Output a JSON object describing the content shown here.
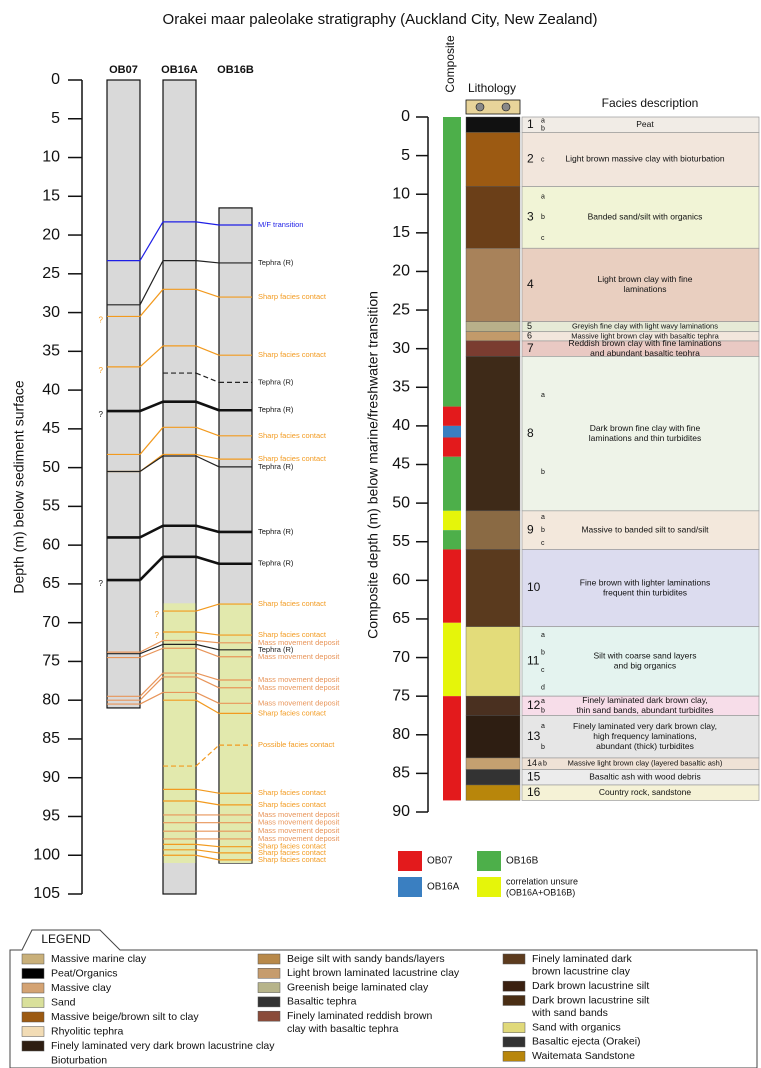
{
  "title": "Orakei maar paleolake stratigraphy (Auckland City, New Zealand)",
  "left_panel": {
    "axis_label": "Depth (m) below sediment surface",
    "ylim": [
      0,
      105
    ],
    "yticks": [
      0,
      5,
      10,
      15,
      20,
      25,
      30,
      35,
      40,
      45,
      50,
      55,
      60,
      65,
      70,
      75,
      80,
      85,
      90,
      95,
      100,
      105
    ],
    "cores": [
      {
        "name": "OB07",
        "top": 0,
        "bottom": 81
      },
      {
        "name": "OB16A",
        "top": 0,
        "bottom": 105,
        "sand": [
          67.5,
          101
        ]
      },
      {
        "name": "OB16B",
        "top": 16.5,
        "bottom": 101,
        "sand": [
          67.5,
          101
        ]
      }
    ],
    "correlations": [
      {
        "label": "M/F transition",
        "color": "#1f1fe6",
        "depths": [
          23.3,
          18.3,
          18.7
        ]
      },
      {
        "label": "Tephra (R)",
        "color": "#222222",
        "depths": [
          29,
          23.3,
          23.6
        ]
      },
      {
        "label": "Sharp facies contact",
        "color": "#f29a1f",
        "depths": [
          30.5,
          27,
          28
        ],
        "note": "?"
      },
      {
        "label": "Sharp facies contact",
        "color": "#f29a1f",
        "depths": [
          37,
          34.3,
          35.5
        ],
        "note": "?"
      },
      {
        "label": "Tephra (R)",
        "color": "#222222",
        "depths": [
          null,
          37.8,
          39
        ],
        "dashed": true
      },
      {
        "label": "Tephra (R)",
        "color": "#111111",
        "depths": [
          42.7,
          41.5,
          42.6
        ],
        "bold": true,
        "note": "?"
      },
      {
        "label": "Sharp facies contact",
        "color": "#f29a1f",
        "depths": [
          48.3,
          44.8,
          45.9
        ]
      },
      {
        "label": "Sharp facies contact",
        "color": "#f29a1f",
        "depths": [
          50.5,
          48.3,
          48.9
        ]
      },
      {
        "label": "Tephra (R)",
        "color": "#222222",
        "depths": [
          50.5,
          48.5,
          49.9
        ]
      },
      {
        "label": "Tephra (R)",
        "color": "#111111",
        "depths": [
          59,
          57.5,
          58.3
        ],
        "bold": true
      },
      {
        "label": "Tephra (R)",
        "color": "#111111",
        "depths": [
          64.5,
          61.5,
          62.4
        ],
        "bold": true,
        "note": "?"
      },
      {
        "label": "Sharp facies contact",
        "color": "#f29a1f",
        "depths": [
          null,
          68.5,
          67.6
        ],
        "note": "?"
      },
      {
        "label": "Sharp facies contact",
        "color": "#f29a1f",
        "depths": [
          null,
          71.2,
          71.6
        ],
        "note": "?"
      },
      {
        "label": "Mass movement deposit",
        "color": "#e8955a",
        "depths": [
          73.8,
          72.3,
          72.6
        ]
      },
      {
        "label": "Tephra (R)",
        "color": "#222222",
        "depths": [
          74,
          72.8,
          73.5
        ]
      },
      {
        "label": "Mass movement deposit",
        "color": "#e8955a",
        "depths": [
          74.5,
          73.3,
          74.4
        ]
      },
      {
        "label": "Mass movement deposit",
        "color": "#e8955a",
        "depths": [
          79.5,
          76.5,
          77.4
        ]
      },
      {
        "label": "Mass movement deposit",
        "color": "#e8955a",
        "depths": [
          80,
          77,
          78.4
        ]
      },
      {
        "label": "Mass movement deposit",
        "color": "#e8955a",
        "depths": [
          80.5,
          79,
          80.4
        ]
      },
      {
        "label": "Sharp facies contact",
        "color": "#f29a1f",
        "depths": [
          null,
          80,
          81.7
        ]
      },
      {
        "label": "Possible facies contact",
        "color": "#f29a1f",
        "depths": [
          null,
          88.5,
          85.8
        ],
        "dashed": true
      },
      {
        "label": "Sharp facies contact",
        "color": "#f29a1f",
        "depths": [
          null,
          91.5,
          92
        ]
      },
      {
        "label": "Sharp facies contact",
        "color": "#f29a1f",
        "depths": [
          null,
          93,
          93.5
        ]
      },
      {
        "label": "Mass movement deposit",
        "color": "#e8955a",
        "depths": [
          null,
          94.8,
          94.8
        ]
      },
      {
        "label": "Mass movement deposit",
        "color": "#e8955a",
        "depths": [
          null,
          95.8,
          95.8
        ]
      },
      {
        "label": "Mass movement deposit",
        "color": "#e8955a",
        "depths": [
          null,
          96.9,
          96.9
        ]
      },
      {
        "label": "Mass movement deposit",
        "color": "#e8955a",
        "depths": [
          null,
          97.9,
          97.9
        ]
      },
      {
        "label": "Sharp facies contact",
        "color": "#f29a1f",
        "depths": [
          null,
          98.6,
          98.9
        ]
      },
      {
        "label": "Sharp facies contact",
        "color": "#f29a1f",
        "depths": [
          null,
          99.3,
          99.7
        ]
      },
      {
        "label": "Sharp facies contact",
        "color": "#f29a1f",
        "depths": [
          null,
          100,
          100.6
        ]
      }
    ]
  },
  "right_panel": {
    "axis_label": "Composite depth (m) below marine/freshwater transition",
    "composite_label": "Composite",
    "lithology_label": "Lithology",
    "facies_label": "Facies description",
    "ylim": [
      0,
      90
    ],
    "yticks": [
      0,
      5,
      10,
      15,
      20,
      25,
      30,
      35,
      40,
      45,
      50,
      55,
      60,
      65,
      70,
      75,
      80,
      85,
      90
    ],
    "sources": [
      {
        "name": "OB07",
        "color": "#e31a1c"
      },
      {
        "name": "OB16B",
        "color": "#4daf4a"
      },
      {
        "name": "OB16A",
        "color": "#3a7fc1"
      },
      {
        "name": "correlation unsure",
        "name2": "(OB16A+OB16B)",
        "color": "#e5f50a"
      }
    ],
    "composite": [
      {
        "from": 0,
        "to": 37.5,
        "source": "OB16B"
      },
      {
        "from": 37.5,
        "to": 40,
        "source": "OB07"
      },
      {
        "from": 40,
        "to": 41.5,
        "source": "OB16A"
      },
      {
        "from": 41.5,
        "to": 44,
        "source": "OB07"
      },
      {
        "from": 44,
        "to": 51,
        "source": "OB16B"
      },
      {
        "from": 51,
        "to": 53.5,
        "source": "correlation unsure"
      },
      {
        "from": 53.5,
        "to": 56,
        "source": "OB16B"
      },
      {
        "from": 56,
        "to": 65.5,
        "source": "OB07"
      },
      {
        "from": 65.5,
        "to": 75,
        "source": "correlation unsure"
      },
      {
        "from": 75,
        "to": 88.5,
        "source": "OB07"
      }
    ],
    "units": [
      {
        "number": 1,
        "subs": [
          "a",
          "b"
        ],
        "from": 0,
        "to": 2,
        "description": [
          "Peat"
        ],
        "bg": "#f1ece6",
        "lith": "#111111"
      },
      {
        "number": 2,
        "subs": [
          "c"
        ],
        "from": 2,
        "to": 9,
        "description": [
          "Light brown massive clay with bioturbation"
        ],
        "bg": "#f2e6dc",
        "lith": "#9c5a12"
      },
      {
        "number": 3,
        "subs": [
          "a",
          "b",
          "c"
        ],
        "from": 9,
        "to": 17,
        "description": [
          "Banded sand/silt with organics"
        ],
        "bg": "#f1f4d6",
        "lith": "#6b3f18"
      },
      {
        "number": 4,
        "subs": [],
        "from": 17,
        "to": 26.5,
        "description": [
          "Light brown clay with fine",
          "laminations"
        ],
        "bg": "#e9cfc0",
        "lith": "#a8825a"
      },
      {
        "number": 5,
        "subs": [],
        "from": 26.5,
        "to": 27.8,
        "description": [
          "Greyish fine clay with light wavy laminations"
        ],
        "bg": "#e6ead6",
        "lith": "#b8b08a"
      },
      {
        "number": 6,
        "subs": [],
        "from": 27.8,
        "to": 29,
        "description": [
          "Massive light brown clay with basaltic tephra"
        ],
        "bg": "#f2e6dc",
        "lith": "#c29a6a"
      },
      {
        "number": 7,
        "subs": [],
        "from": 29,
        "to": 31,
        "description": [
          "Reddish brown clay with fine laminations",
          "and abundant basaltic tephra"
        ],
        "bg": "#e9c9c3",
        "lith": "#7a3c30"
      },
      {
        "number": 8,
        "subs": [
          "a",
          "b"
        ],
        "from": 31,
        "to": 51,
        "description": [
          "Dark brown fine clay with fine",
          "laminations and thin turbidites"
        ],
        "bg": "#eef3e8",
        "lith": "#3e2a18"
      },
      {
        "number": 9,
        "subs": [
          "a",
          "b",
          "c"
        ],
        "from": 51,
        "to": 56,
        "description": [
          "Massive to banded silt to sand/silt"
        ],
        "bg": "#f3e8dc",
        "lith": "#8a6a44"
      },
      {
        "number": 10,
        "subs": [],
        "from": 56,
        "to": 66,
        "description": [
          "Fine brown with lighter laminations",
          "frequent thin turbidites"
        ],
        "bg": "#dcdcef",
        "lith": "#5a3a1e"
      },
      {
        "number": 11,
        "subs": [
          "a",
          "b",
          "c",
          "d"
        ],
        "from": 66,
        "to": 75,
        "description": [
          "Silt with coarse sand layers",
          "and big organics"
        ],
        "bg": "#e4f3ef",
        "lith": "#e3dc7a"
      },
      {
        "number": 12,
        "subs": [
          "a",
          "b"
        ],
        "from": 75,
        "to": 77.5,
        "description": [
          "Finely laminated dark brown clay,",
          "thin sand bands, abundant turbidites"
        ],
        "bg": "#f7dde9",
        "lith": "#4a3020"
      },
      {
        "number": 13,
        "subs": [
          "a",
          "b"
        ],
        "from": 77.5,
        "to": 83,
        "description": [
          "Finely laminated very dark brown clay,",
          "high frequency laminations,",
          "abundant (thick) turbidites"
        ],
        "bg": "#e6e6e6",
        "lith": "#2e1e12"
      },
      {
        "number": 14,
        "subs": [
          "a",
          "b"
        ],
        "from": 83,
        "to": 84.5,
        "description": [
          "Massive light brown clay (layered basaltic ash)"
        ],
        "bg": "#efe2d6",
        "lith": "#c4a070"
      },
      {
        "number": 15,
        "subs": [],
        "from": 84.5,
        "to": 86.5,
        "description": [
          "Basaltic ash with wood debris"
        ],
        "bg": "#ececec",
        "lith": "#333333"
      },
      {
        "number": 16,
        "subs": [],
        "from": 86.5,
        "to": 88.5,
        "description": [
          "Country rock, sandstone"
        ],
        "bg": "#f5f2d6",
        "lith": "#b8860b"
      }
    ]
  },
  "legend": {
    "title": "LEGEND",
    "columns": [
      [
        {
          "lines": [
            "Massive marine clay"
          ],
          "color": "#c9b07a"
        },
        {
          "lines": [
            "Peat/Organics"
          ],
          "color": "#000000"
        },
        {
          "lines": [
            "Massive clay"
          ],
          "color": "#d4a373"
        },
        {
          "lines": [
            "Sand"
          ],
          "color": "#d9e09b"
        },
        {
          "lines": [
            "Massive beige/brown silt to clay"
          ],
          "color": "#9c5a12"
        },
        {
          "lines": [
            "Rhyolitic tephra"
          ],
          "color": "#f2dcb5"
        },
        {
          "lines": [
            "Finely laminated very dark brown lacustrine clay"
          ],
          "color": "#2e1e12"
        },
        {
          "lines": [
            "Bioturbation"
          ],
          "color": "#ffffff"
        }
      ],
      [
        {
          "lines": [
            "Beige silt with sandy bands/layers"
          ],
          "color": "#b8894a"
        },
        {
          "lines": [
            "Light brown laminated lacustrine clay"
          ],
          "color": "#c69c6d"
        },
        {
          "lines": [
            "Greenish beige laminated clay"
          ],
          "color": "#b7b48a"
        },
        {
          "lines": [
            "Basaltic tephra"
          ],
          "color": "#333333"
        },
        {
          "lines": [
            "Finely laminated reddish brown",
            "clay with basaltic tephra"
          ],
          "color": "#8a4b3a"
        }
      ],
      [
        {
          "lines": [
            "Finely laminated dark",
            "brown lacustrine clay"
          ],
          "color": "#5c3b1e"
        },
        {
          "lines": [
            "Dark brown lacustrine silt"
          ],
          "color": "#3a2010"
        },
        {
          "lines": [
            "Dark brown lacustrine silt",
            "with sand bands"
          ],
          "color": "#4a2e14"
        },
        {
          "lines": [
            "Sand with organics"
          ],
          "color": "#e0d97a"
        },
        {
          "lines": [
            "Basaltic ejecta (Orakei)"
          ],
          "color": "#333333"
        },
        {
          "lines": [
            "Waitemata Sandstone"
          ],
          "color": "#b8860b"
        }
      ]
    ]
  }
}
